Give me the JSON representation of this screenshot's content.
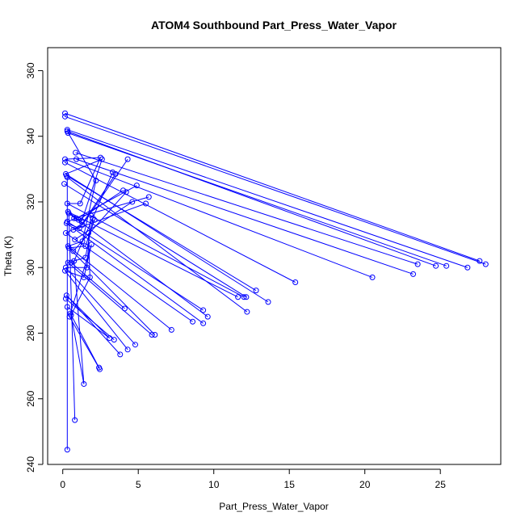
{
  "chart_data": {
    "type": "scatter",
    "title": "ATOM4 Southbound Part_Press_Water_Vapor",
    "xlabel": "Part_Press_Water_Vapor",
    "ylabel": "Theta (K)",
    "xlim": [
      -1.0,
      29.0
    ],
    "ylim": [
      240,
      367
    ],
    "x_ticks": [
      "0",
      "5",
      "10",
      "15",
      "20",
      "25"
    ],
    "y_ticks": [
      "240",
      "260",
      "280",
      "300",
      "320",
      "340",
      "360"
    ],
    "grid": false,
    "marker": "open-circle",
    "connect_points": true,
    "series_color": "#0000ff",
    "points": [
      {
        "x": 0.15,
        "y": 347
      },
      {
        "x": 0.15,
        "y": 346
      },
      {
        "x": 0.3,
        "y": 342
      },
      {
        "x": 0.3,
        "y": 341.5
      },
      {
        "x": 0.35,
        "y": 341
      },
      {
        "x": 0.85,
        "y": 335
      },
      {
        "x": 0.9,
        "y": 333
      },
      {
        "x": 0.15,
        "y": 333
      },
      {
        "x": 0.15,
        "y": 332
      },
      {
        "x": 0.2,
        "y": 328.5
      },
      {
        "x": 0.25,
        "y": 328
      },
      {
        "x": 0.3,
        "y": 327.5
      },
      {
        "x": 0.1,
        "y": 325.5
      },
      {
        "x": 0.3,
        "y": 319.5
      },
      {
        "x": 0.35,
        "y": 317
      },
      {
        "x": 0.4,
        "y": 316.5
      },
      {
        "x": 0.3,
        "y": 314
      },
      {
        "x": 0.25,
        "y": 313.5
      },
      {
        "x": 0.2,
        "y": 310.5
      },
      {
        "x": 0.35,
        "y": 306.5
      },
      {
        "x": 0.4,
        "y": 306
      },
      {
        "x": 0.35,
        "y": 301.5
      },
      {
        "x": 0.2,
        "y": 300
      },
      {
        "x": 0.15,
        "y": 299
      },
      {
        "x": 0.25,
        "y": 291.5
      },
      {
        "x": 0.2,
        "y": 290.5
      },
      {
        "x": 0.3,
        "y": 288
      },
      {
        "x": 0.45,
        "y": 285
      },
      {
        "x": 0.5,
        "y": 286
      },
      {
        "x": 0.55,
        "y": 285.5
      },
      {
        "x": 0.3,
        "y": 244.5
      },
      {
        "x": 0.8,
        "y": 253.5
      },
      {
        "x": 1.4,
        "y": 264.5
      },
      {
        "x": 2.4,
        "y": 269.5
      },
      {
        "x": 2.45,
        "y": 269
      },
      {
        "x": 0.55,
        "y": 301.5
      },
      {
        "x": 0.75,
        "y": 302
      },
      {
        "x": 0.7,
        "y": 305
      },
      {
        "x": 0.8,
        "y": 308.5
      },
      {
        "x": 0.7,
        "y": 311.5
      },
      {
        "x": 0.75,
        "y": 315
      },
      {
        "x": 0.9,
        "y": 315
      },
      {
        "x": 1.05,
        "y": 314.5
      },
      {
        "x": 1.1,
        "y": 312
      },
      {
        "x": 1.3,
        "y": 313
      },
      {
        "x": 1.25,
        "y": 314
      },
      {
        "x": 1.15,
        "y": 319.5
      },
      {
        "x": 1.3,
        "y": 308
      },
      {
        "x": 1.5,
        "y": 306.5
      },
      {
        "x": 1.5,
        "y": 303
      },
      {
        "x": 1.6,
        "y": 300
      },
      {
        "x": 1.8,
        "y": 297
      },
      {
        "x": 1.4,
        "y": 297
      },
      {
        "x": 1.7,
        "y": 310.5
      },
      {
        "x": 1.85,
        "y": 316
      },
      {
        "x": 2.0,
        "y": 315
      },
      {
        "x": 2.1,
        "y": 314.5
      },
      {
        "x": 1.9,
        "y": 307
      },
      {
        "x": 2.2,
        "y": 326.5
      },
      {
        "x": 2.5,
        "y": 333.5
      },
      {
        "x": 2.6,
        "y": 333
      },
      {
        "x": 3.3,
        "y": 329
      },
      {
        "x": 3.5,
        "y": 328.5
      },
      {
        "x": 4.0,
        "y": 323.5
      },
      {
        "x": 4.2,
        "y": 323
      },
      {
        "x": 4.3,
        "y": 333
      },
      {
        "x": 4.6,
        "y": 320
      },
      {
        "x": 4.9,
        "y": 325
      },
      {
        "x": 5.5,
        "y": 319.5
      },
      {
        "x": 5.7,
        "y": 321.5
      },
      {
        "x": 4.1,
        "y": 287.5
      },
      {
        "x": 3.1,
        "y": 278.5
      },
      {
        "x": 3.4,
        "y": 278
      },
      {
        "x": 3.8,
        "y": 273.5
      },
      {
        "x": 4.3,
        "y": 275
      },
      {
        "x": 4.8,
        "y": 276.5
      },
      {
        "x": 5.9,
        "y": 279.5
      },
      {
        "x": 6.1,
        "y": 279.5
      },
      {
        "x": 7.2,
        "y": 281
      },
      {
        "x": 8.6,
        "y": 283.5
      },
      {
        "x": 9.3,
        "y": 283
      },
      {
        "x": 9.3,
        "y": 287
      },
      {
        "x": 9.6,
        "y": 285
      },
      {
        "x": 11.6,
        "y": 291
      },
      {
        "x": 12.0,
        "y": 291
      },
      {
        "x": 12.15,
        "y": 291
      },
      {
        "x": 12.2,
        "y": 286.5
      },
      {
        "x": 12.8,
        "y": 293
      },
      {
        "x": 13.6,
        "y": 289.5
      },
      {
        "x": 15.4,
        "y": 295.5
      },
      {
        "x": 20.5,
        "y": 297
      },
      {
        "x": 23.2,
        "y": 298
      },
      {
        "x": 23.5,
        "y": 301
      },
      {
        "x": 24.7,
        "y": 300.5
      },
      {
        "x": 25.4,
        "y": 300.5
      },
      {
        "x": 26.8,
        "y": 300
      },
      {
        "x": 27.6,
        "y": 302
      },
      {
        "x": 28.0,
        "y": 301
      }
    ],
    "segments": [
      [
        0.15,
        347,
        27.6,
        302
      ],
      [
        0.15,
        346,
        28.0,
        301
      ],
      [
        0.3,
        342,
        26.8,
        300
      ],
      [
        0.35,
        341,
        25.4,
        300.5
      ],
      [
        0.3,
        341.5,
        24.7,
        300.5
      ],
      [
        0.85,
        335,
        23.5,
        301
      ],
      [
        0.9,
        333,
        23.2,
        298
      ],
      [
        0.15,
        333,
        20.5,
        297
      ],
      [
        0.15,
        332,
        15.4,
        295.5
      ],
      [
        0.2,
        328.5,
        13.6,
        289.5
      ],
      [
        0.25,
        328,
        12.8,
        293
      ],
      [
        0.3,
        327.5,
        12.2,
        286.5
      ],
      [
        0.1,
        325.5,
        12.15,
        291
      ],
      [
        0.3,
        319.5,
        12.0,
        291
      ],
      [
        0.35,
        317,
        11.6,
        291
      ],
      [
        0.4,
        316.5,
        9.6,
        285
      ],
      [
        0.3,
        314,
        9.3,
        287
      ],
      [
        0.25,
        313.5,
        9.3,
        283
      ],
      [
        0.2,
        310.5,
        8.6,
        283.5
      ],
      [
        0.35,
        306.5,
        7.2,
        281
      ],
      [
        0.4,
        306,
        6.1,
        279.5
      ],
      [
        0.35,
        301.5,
        5.9,
        279.5
      ],
      [
        0.2,
        300,
        4.8,
        276.5
      ],
      [
        0.15,
        299,
        4.3,
        275
      ],
      [
        0.25,
        291.5,
        3.8,
        273.5
      ],
      [
        0.2,
        290.5,
        3.4,
        278
      ],
      [
        0.3,
        288,
        3.1,
        278.5
      ],
      [
        0.45,
        285,
        2.45,
        269
      ],
      [
        0.5,
        286,
        2.4,
        269.5
      ],
      [
        0.55,
        285.5,
        1.4,
        264.5
      ],
      [
        0.3,
        244.5,
        0.3,
        327.5
      ],
      [
        0.8,
        253.5,
        0.4,
        316.5
      ],
      [
        1.4,
        264.5,
        0.75,
        302
      ],
      [
        0.55,
        301.5,
        4.1,
        287.5
      ],
      [
        0.75,
        302,
        3.3,
        329
      ],
      [
        0.7,
        305,
        4.2,
        323
      ],
      [
        0.8,
        308.5,
        4.6,
        320
      ],
      [
        0.7,
        311.5,
        5.5,
        319.5
      ],
      [
        0.75,
        315,
        5.7,
        321.5
      ],
      [
        0.9,
        315,
        4.9,
        325
      ],
      [
        1.05,
        314.5,
        4.0,
        323.5
      ],
      [
        1.1,
        312,
        3.5,
        328.5
      ],
      [
        1.3,
        313,
        4.3,
        333
      ],
      [
        1.25,
        314,
        2.6,
        333
      ],
      [
        1.15,
        319.5,
        2.5,
        333.5
      ],
      [
        1.3,
        308,
        2.2,
        326.5
      ],
      [
        1.5,
        306.5,
        2.1,
        314.5
      ],
      [
        1.5,
        303,
        2.0,
        315
      ],
      [
        1.6,
        300,
        1.85,
        316
      ],
      [
        1.8,
        297,
        1.7,
        310.5
      ],
      [
        1.4,
        297,
        1.9,
        307
      ],
      [
        0.3,
        341.5,
        2.2,
        326.5
      ],
      [
        0.15,
        333,
        2.5,
        333.5
      ],
      [
        0.2,
        328.5,
        2.6,
        333
      ],
      [
        0.3,
        319.5,
        1.15,
        319.5
      ],
      [
        0.35,
        317,
        1.05,
        314.5
      ],
      [
        0.4,
        316.5,
        1.25,
        314
      ],
      [
        0.3,
        314,
        0.9,
        315
      ],
      [
        0.25,
        313.5,
        1.1,
        312
      ],
      [
        0.2,
        310.5,
        1.3,
        313
      ],
      [
        0.35,
        306.5,
        1.3,
        308
      ],
      [
        0.4,
        306,
        1.5,
        306.5
      ],
      [
        0.35,
        301.5,
        1.5,
        303
      ],
      [
        0.2,
        300,
        1.6,
        300
      ],
      [
        0.15,
        299,
        1.4,
        297
      ],
      [
        0.25,
        291.5,
        3.1,
        278.5
      ],
      [
        0.55,
        285.5,
        1.8,
        297
      ],
      [
        0.5,
        286,
        1.9,
        307
      ]
    ]
  }
}
